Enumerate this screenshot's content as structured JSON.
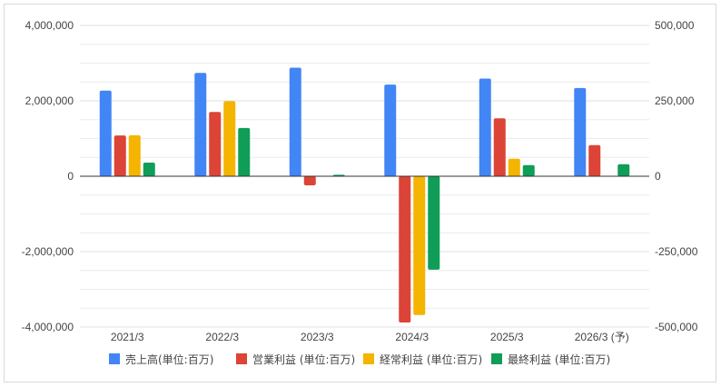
{
  "chart_data": {
    "type": "bar",
    "categories": [
      "2021/3",
      "2022/3",
      "2023/3",
      "2024/3",
      "2025/3",
      "2026/3 (予)"
    ],
    "series": [
      {
        "name": "売上高(単位:百万)",
        "axis": "left",
        "color": "#4285F4",
        "values": [
          2270000,
          2740000,
          2880000,
          2430000,
          2590000,
          2340000
        ]
      },
      {
        "name": "営業利益 (単位:百万)",
        "axis": "right",
        "color": "#DB4437",
        "values": [
          135000,
          213000,
          -30000,
          -485000,
          192000,
          103000
        ]
      },
      {
        "name": "経常利益 (単位:百万)",
        "axis": "right",
        "color": "#F4B400",
        "values": [
          136000,
          249000,
          null,
          -460000,
          58000,
          null
        ]
      },
      {
        "name": "最終利益 (単位:百万)",
        "axis": "right",
        "color": "#0F9D58",
        "values": [
          45000,
          160000,
          5000,
          -310000,
          37000,
          40000
        ]
      }
    ],
    "y_left": {
      "ylim": [
        -4000000,
        4000000
      ],
      "ticks": [
        4000000,
        2000000,
        0,
        -2000000,
        -4000000
      ],
      "tick_labels": [
        "4,000,000",
        "2,000,000",
        "0",
        "-2,000,000",
        "-4,000,000"
      ]
    },
    "y_right": {
      "ylim": [
        -500000,
        500000
      ],
      "ticks": [
        500000,
        250000,
        0,
        -250000,
        -500000
      ],
      "tick_labels": [
        "500,000",
        "250,000",
        "0",
        "-250,000",
        "-500,000"
      ]
    },
    "grid": true,
    "legend_position": "bottom"
  }
}
